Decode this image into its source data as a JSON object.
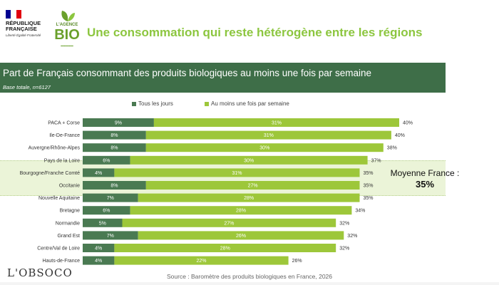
{
  "header": {
    "republique_line1": "RÉPUBLIQUE",
    "republique_line2": "FRANÇAISE",
    "republique_motto": "Liberté Égalité Fraternité",
    "agence_small": "L'AGENCE",
    "agence_big": "BIO",
    "headline": "Une consommation qui reste hétérogène entre les régions"
  },
  "banner": {
    "title": "Part de Français consommant des produits biologiques au moins une fois par semaine",
    "base": "Base totale, n=6127"
  },
  "average": {
    "label": "Moyenne France :",
    "value": "35%"
  },
  "footer": {
    "logo": "L'OBSOCO",
    "source": "Source : Baromètre des produits biologiques en France, 2026"
  },
  "colors": {
    "dark_green": "#4a7a52",
    "light_green": "#9dc73a",
    "highlight": "#ebf4d8",
    "headline": "#8cc63f",
    "banner": "#3e6e48"
  },
  "chart_data": {
    "type": "bar",
    "orientation": "horizontal",
    "stacked": true,
    "categories": [
      "PACA + Corse",
      "Ile-De-France",
      "Auvergne/Rhône-Alpes",
      "Pays de la Loire",
      "Bourgogne/Franche Comté",
      "Occitanie",
      "Nouvelle Aquitaine",
      "Bretagne",
      "Normandie",
      "Grand Est",
      "Centre/Val de Loire",
      "Hauts-de-France"
    ],
    "series": [
      {
        "name": "Tous les jours",
        "color": "#4a7a52",
        "values": [
          9,
          8,
          8,
          6,
          4,
          8,
          7,
          6,
          5,
          7,
          4,
          4
        ],
        "labels": [
          "9%",
          "8%",
          "8%",
          "6%",
          "4%",
          "8%",
          "7%",
          "6%",
          "5%",
          "7%",
          "4%",
          "4%"
        ]
      },
      {
        "name": "Au moins une fois par semaine",
        "color": "#9dc73a",
        "values": [
          31,
          31,
          30,
          30,
          31,
          27,
          28,
          28,
          27,
          26,
          28,
          22
        ],
        "labels": [
          "31%",
          "31%",
          "30%",
          "30%",
          "31%",
          "27%",
          "28%",
          "28%",
          "27%",
          "26%",
          "28%",
          "22%"
        ]
      }
    ],
    "totals": [
      40,
      40,
      38,
      37,
      35,
      35,
      35,
      34,
      32,
      32,
      32,
      26
    ],
    "total_labels": [
      "40%",
      "40%",
      "38%",
      "37%",
      "35%",
      "35%",
      "35%",
      "34%",
      "32%",
      "32%",
      "32%",
      "26%"
    ],
    "highlighted_categories": [
      "Bourgogne/Franche Comté",
      "Occitanie",
      "Nouvelle Aquitaine"
    ],
    "legend_position": "top",
    "grid": false
  }
}
